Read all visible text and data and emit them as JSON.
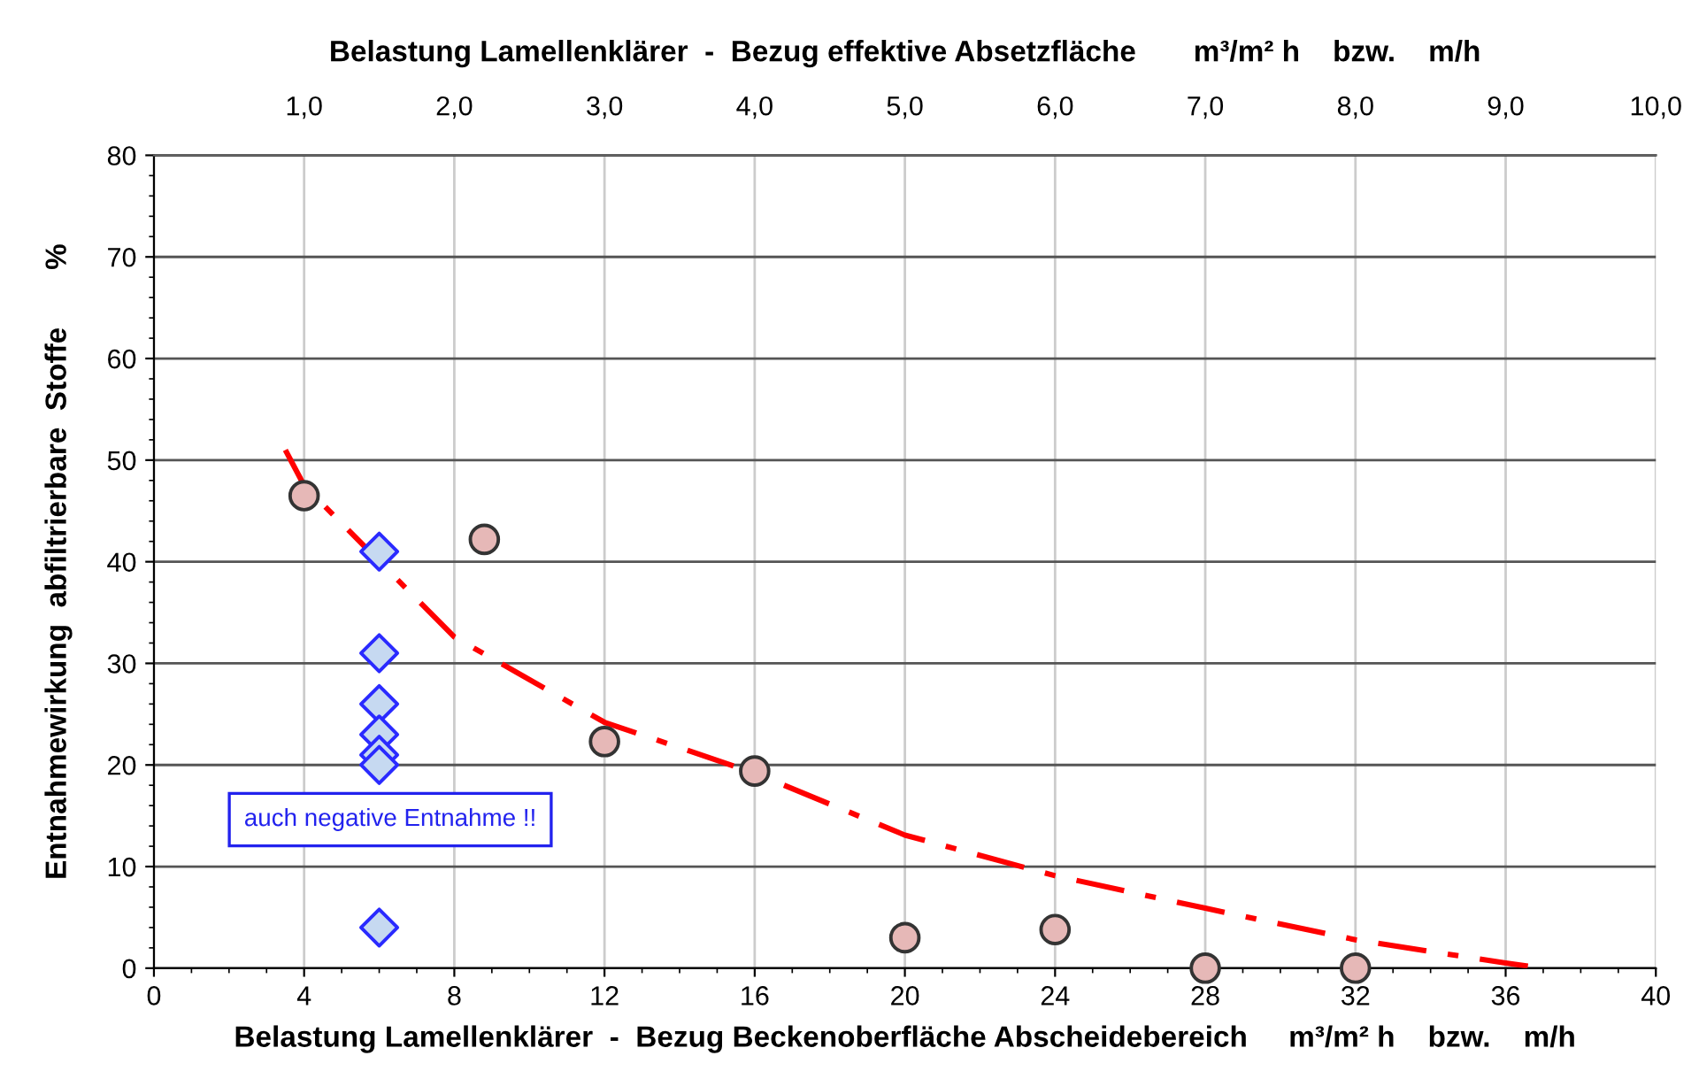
{
  "chart_data": {
    "type": "scatter",
    "xlabel": "Belastung Lamellenklärer  -  Bezug Beckenoberfläche Abscheidebereich     m³/m² h    bzw.    m/h",
    "ylabel": "Entnahmewirkung  abfiltrierbare  Stoffe       %",
    "x2label": "Belastung Lamellenklärer  -  Bezug effektive Absetzfläche       m³/m² h    bzw.    m/h",
    "xlim": [
      0,
      40
    ],
    "xticks": [
      0,
      4,
      8,
      12,
      16,
      20,
      24,
      28,
      32,
      36,
      40
    ],
    "ylim": [
      0,
      80
    ],
    "yticks": [
      0,
      10,
      20,
      30,
      40,
      50,
      60,
      70,
      80
    ],
    "x2lim": [
      0,
      10
    ],
    "x2ticks": [
      {
        "value": 1,
        "label": "1,0"
      },
      {
        "value": 2,
        "label": "2,0"
      },
      {
        "value": 3,
        "label": "3,0"
      },
      {
        "value": 4,
        "label": "4,0"
      },
      {
        "value": 5,
        "label": "5,0"
      },
      {
        "value": 6,
        "label": "6,0"
      },
      {
        "value": 7,
        "label": "7,0"
      },
      {
        "value": 8,
        "label": "8,0"
      },
      {
        "value": 9,
        "label": "9,0"
      },
      {
        "value": 10,
        "label": "10,0"
      }
    ],
    "grid": true,
    "series": [
      {
        "marker": "circle",
        "color": "#e6b8b7",
        "x": [
          4,
          8.8,
          12,
          16,
          20,
          24,
          28,
          32
        ],
        "values": [
          46.5,
          42.2,
          22.3,
          19.4,
          3,
          3.8,
          0,
          0
        ]
      },
      {
        "marker": "diamond",
        "color": "#c6d9f1",
        "x": [
          6,
          6,
          6,
          6,
          6,
          6,
          6
        ],
        "values": [
          41,
          31,
          26,
          23,
          21,
          20,
          4
        ]
      },
      {
        "type": "line",
        "marker": "none",
        "line_style": "dashed",
        "color": "#ff0000",
        "x": [
          3.5,
          4,
          8,
          12,
          16,
          20,
          24,
          28,
          32,
          36,
          37
        ],
        "values": [
          51,
          47.5,
          32.6,
          24.2,
          19.2,
          13.1,
          9.1,
          5.9,
          2.8,
          0.5,
          0
        ]
      }
    ],
    "annotations": [
      "auch negative Entnahme !!"
    ]
  }
}
